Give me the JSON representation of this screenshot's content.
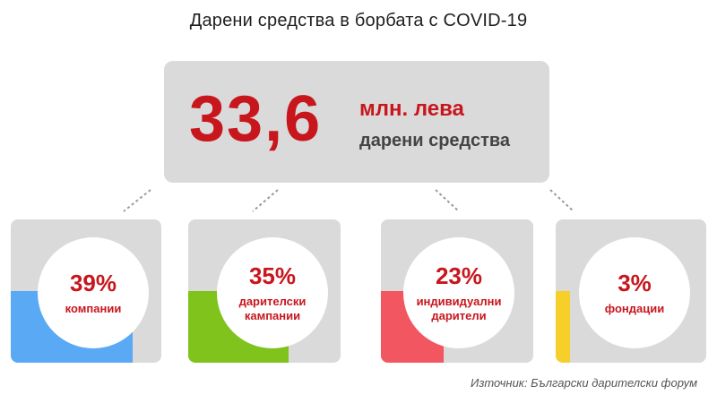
{
  "title": "Дарени средства в борбата с COVID-19",
  "total": {
    "value": "33,6",
    "unit": "млн. лева",
    "subtitle": "дарени средства"
  },
  "chart_data": {
    "type": "bar",
    "categories": [
      "компании",
      "дарителски кампании",
      "индивидуални дарители",
      "фондации"
    ],
    "values": [
      39,
      35,
      23,
      3
    ],
    "labels": [
      "39%",
      "35%",
      "23%",
      "3%"
    ],
    "colors": [
      "#5aa9f5",
      "#7fc31c",
      "#f25660",
      "#f6cf2b"
    ]
  },
  "segments": [
    {
      "pct": "39%",
      "label_line1": "компании",
      "label_line2": "",
      "color": "#5aa9f5"
    },
    {
      "pct": "35%",
      "label_line1": "дарителски",
      "label_line2": "кампании",
      "color": "#7fc31c"
    },
    {
      "pct": "23%",
      "label_line1": "индивидуални",
      "label_line2": "дарители",
      "color": "#f25660"
    },
    {
      "pct": "3%",
      "label_line1": "фондации",
      "label_line2": "",
      "color": "#f6cf2b"
    }
  ],
  "source": "Източник: Български дарителски форум",
  "colors": {
    "accent": "#c8161d",
    "box": "#dadada"
  }
}
